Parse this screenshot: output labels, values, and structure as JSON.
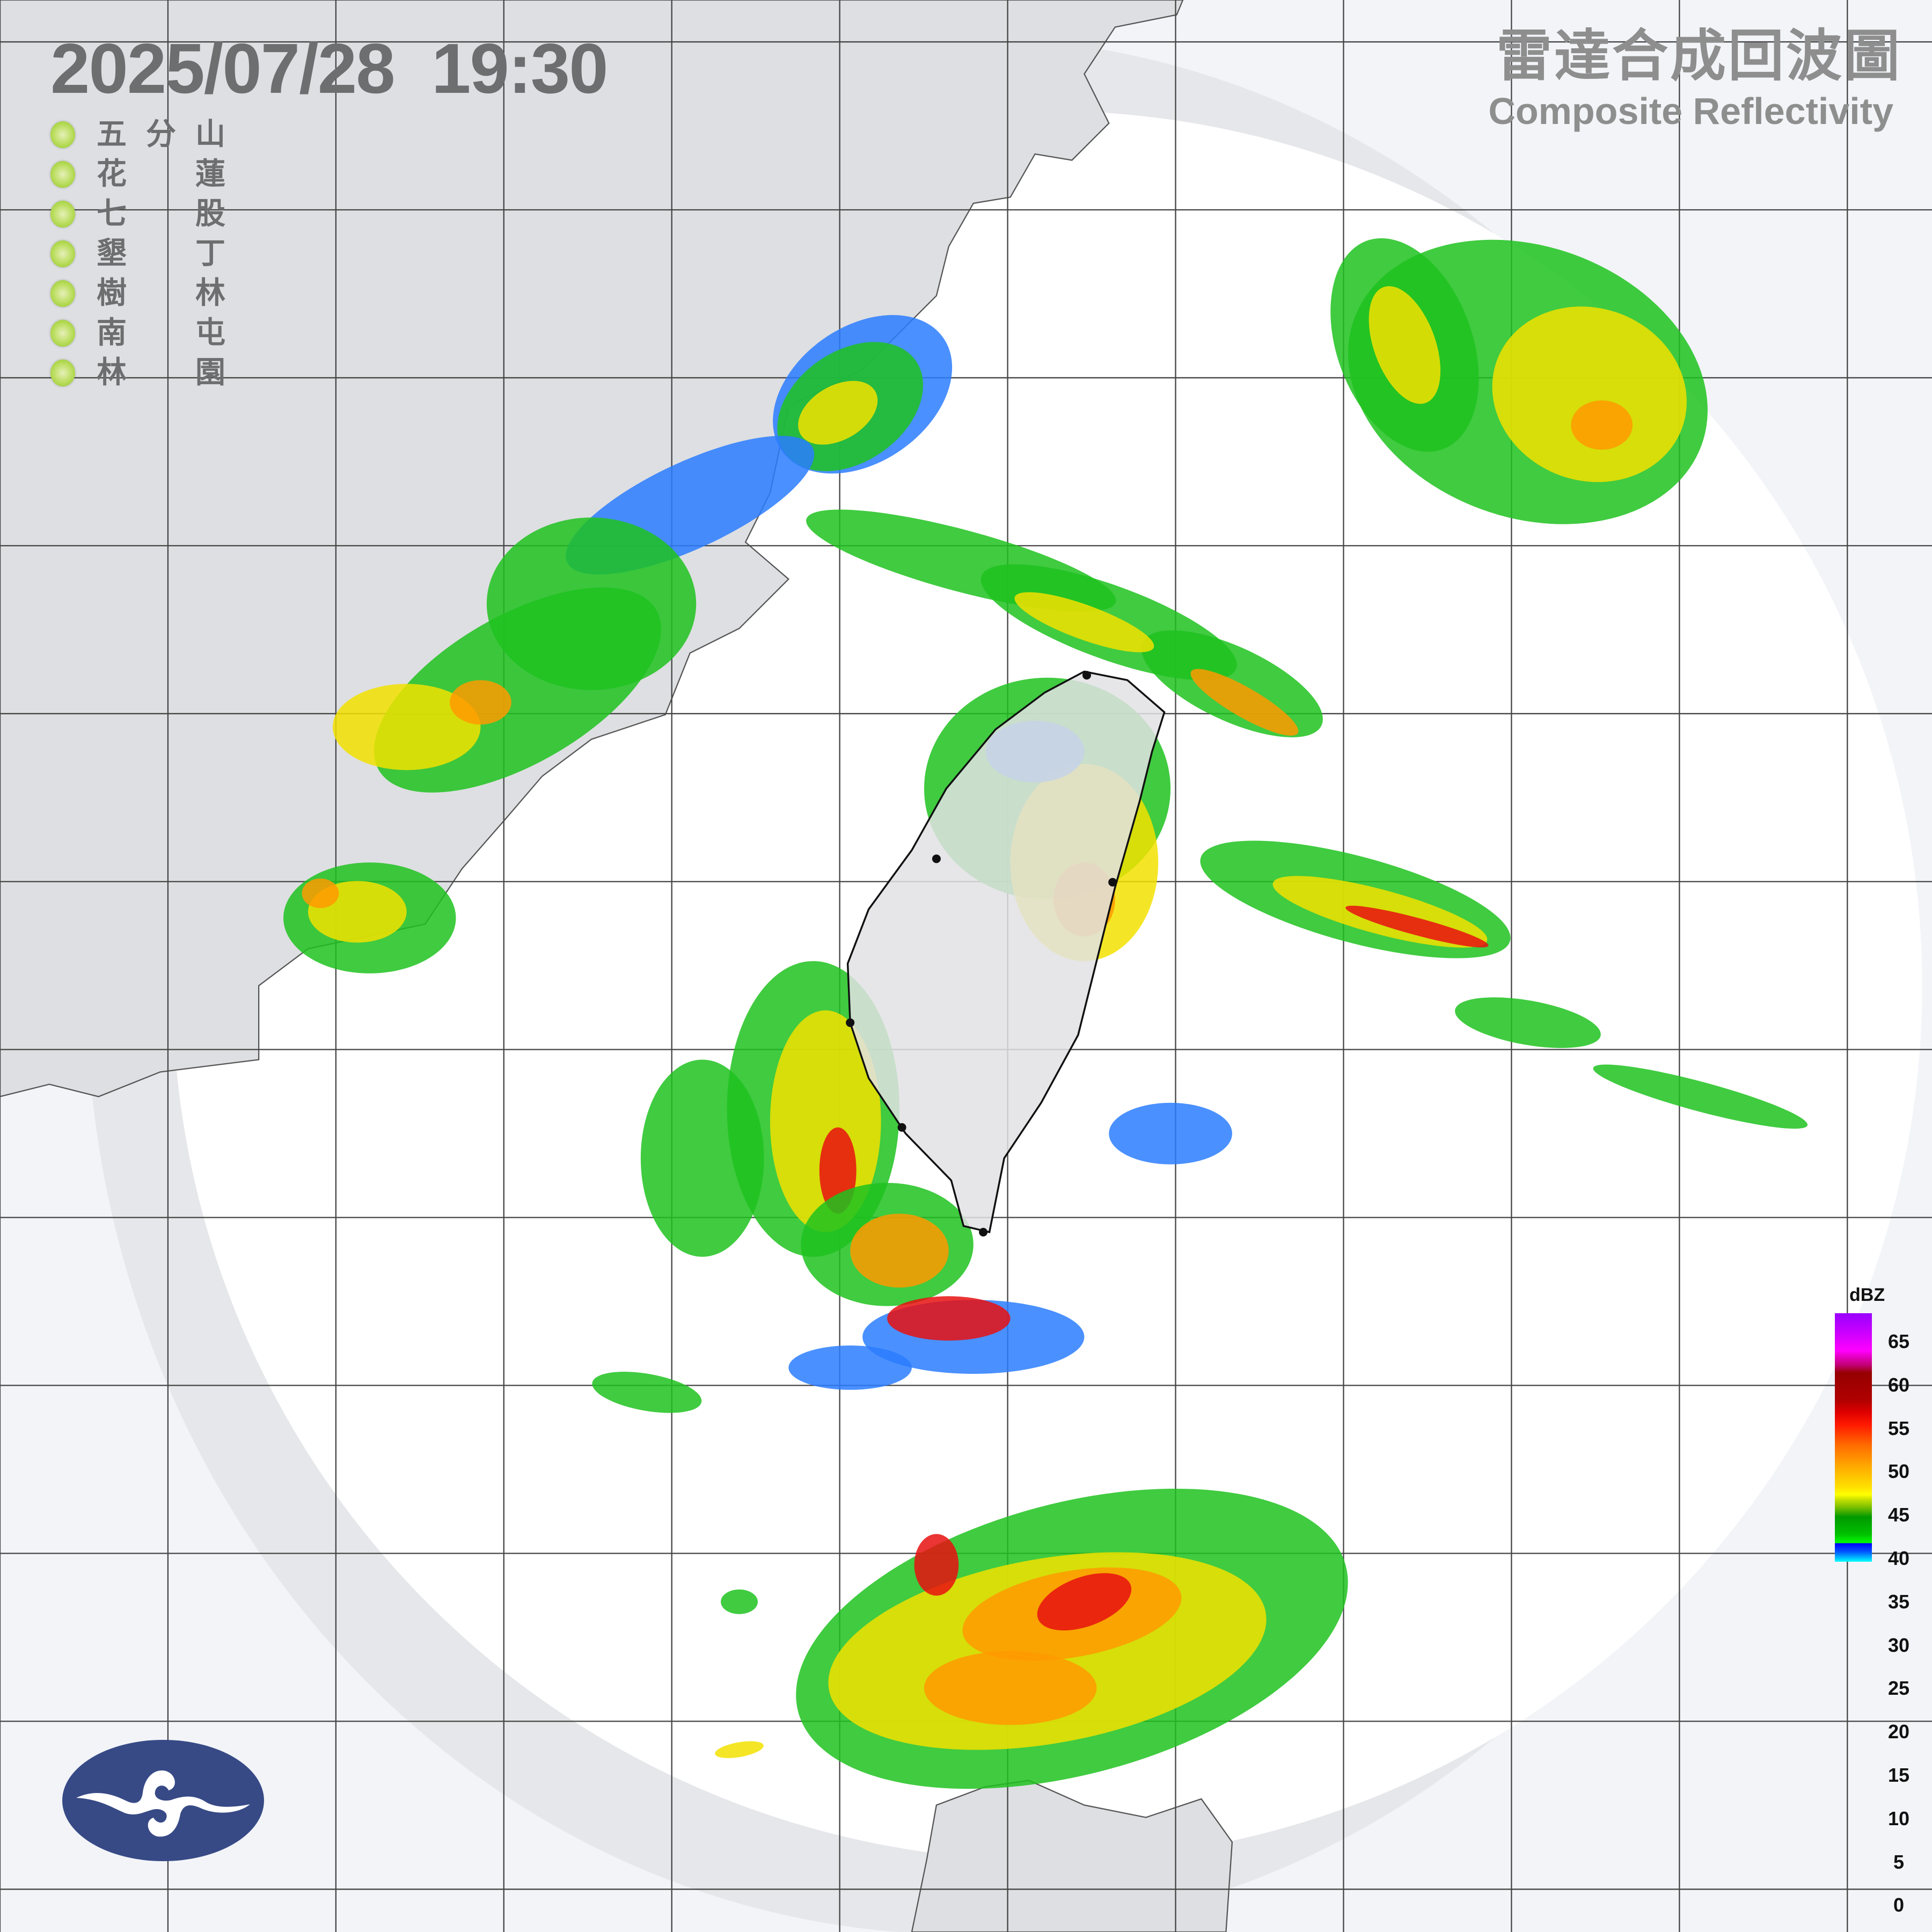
{
  "header": {
    "timestamp": "2025/07/28  19:30",
    "title_zh": "雷達合成回波圖",
    "title_en": "Composite Reflectivity"
  },
  "stations": [
    {
      "name": [
        "五",
        "分",
        "山"
      ],
      "status_color": "#9fd03a"
    },
    {
      "name": [
        "花",
        "",
        "蓮"
      ],
      "status_color": "#9fd03a"
    },
    {
      "name": [
        "七",
        "",
        "股"
      ],
      "status_color": "#9fd03a"
    },
    {
      "name": [
        "墾",
        "",
        "丁"
      ],
      "status_color": "#9fd03a"
    },
    {
      "name": [
        "樹",
        "",
        "林"
      ],
      "status_color": "#9fd03a"
    },
    {
      "name": [
        "南",
        "",
        "屯"
      ],
      "status_color": "#9fd03a"
    },
    {
      "name": [
        "林",
        "",
        "園"
      ],
      "status_color": "#9fd03a"
    }
  ],
  "colorbar": {
    "unit": "dBZ",
    "labels": [
      "65",
      "60",
      "55",
      "50",
      "45",
      "40",
      "35",
      "30",
      "25",
      "20",
      "15",
      "10",
      "5",
      "0"
    ],
    "range": [
      0,
      65
    ]
  },
  "logo": {
    "icon": "cwa-cloud-logo",
    "color": "#374a86"
  },
  "colors": {
    "land": "#e2e2e4",
    "coverage": "#ffffff",
    "background": "#f2f4f8",
    "grid": "#444444"
  }
}
